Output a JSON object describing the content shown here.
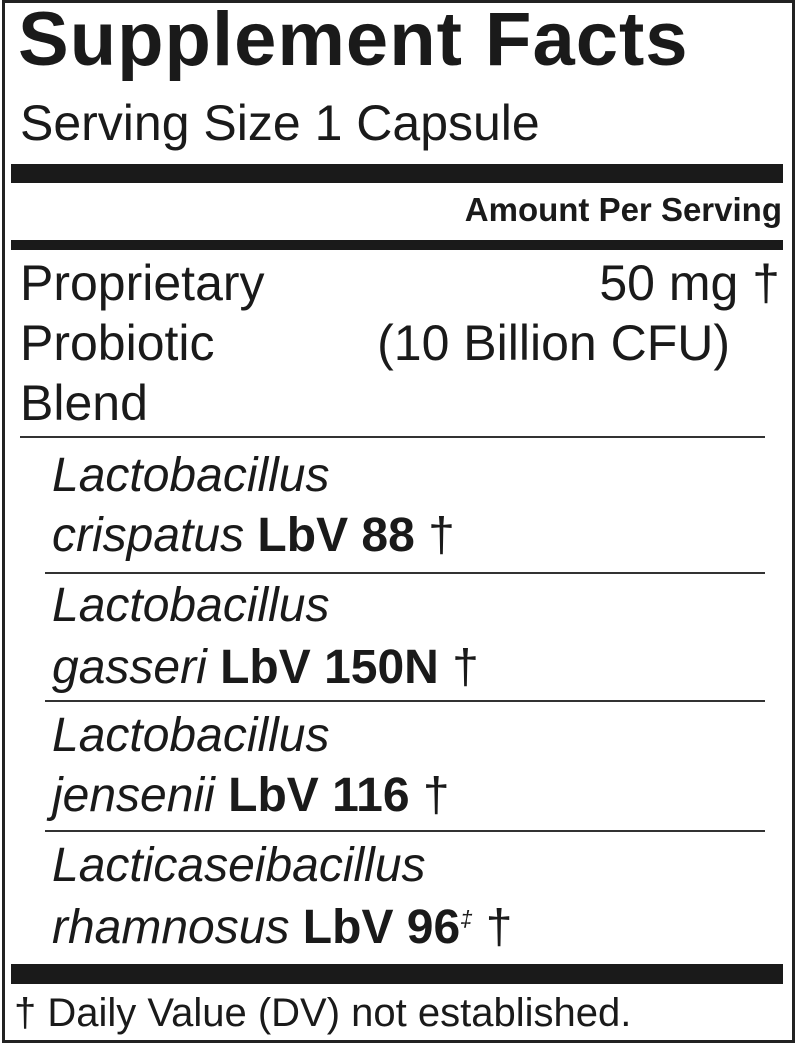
{
  "title": "Supplement Facts",
  "serving_size": "Serving Size 1 Capsule",
  "amount_header": "Amount Per Serving",
  "blend": {
    "name_lines": [
      "Proprietary",
      "Probiotic",
      "Blend"
    ],
    "amount": "50 mg †",
    "cfu": "(10 Billion CFU)"
  },
  "ingredients": [
    {
      "genus": "Lactobacillus",
      "species": "crispatus",
      "strain": "LbV 88",
      "mark": "",
      "dagger": "†"
    },
    {
      "genus": "Lactobacillus",
      "species": "gasseri",
      "strain": "LbV 150N",
      "mark": "",
      "dagger": "†"
    },
    {
      "genus": "Lactobacillus",
      "species": "jensenii",
      "strain": "LbV 116",
      "mark": "",
      "dagger": "†"
    },
    {
      "genus": "Lacticaseibacillus",
      "species": "rhamnosus",
      "strain": "LbV 96",
      "mark": "‡",
      "dagger": "†"
    }
  ],
  "footnote": "† Daily Value (DV) not established."
}
